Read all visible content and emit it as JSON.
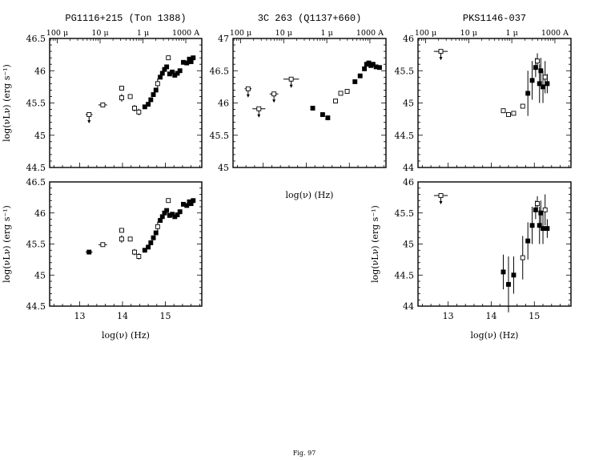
{
  "figure": {
    "caption": "Fig. 97",
    "micron_symbol": "μ"
  },
  "chart_data": [
    {
      "id": "pg-top",
      "type": "scatter",
      "title": "PG1116+215 (Ton 1388)",
      "xlabel": "",
      "ylabel": "log(νLν) (erg s⁻¹)",
      "xlim": [
        12.3,
        15.85
      ],
      "ylim": [
        44.5,
        46.5
      ],
      "yticks": [
        44.5,
        45,
        45.5,
        46,
        46.5
      ],
      "xticks": [],
      "wavelength_ticks": [
        {
          "label": "100 μ",
          "at": 12.477
        },
        {
          "label": "10 μ",
          "at": 13.477
        },
        {
          "label": "1 μ",
          "at": 14.477
        },
        {
          "label": "1000 A",
          "at": 15.477
        }
      ],
      "points": [
        {
          "x": 13.22,
          "y": 45.32,
          "m": "open",
          "arrow": true,
          "xerr": 0.08
        },
        {
          "x": 13.54,
          "y": 45.47,
          "m": "open",
          "xerr": 0.1
        },
        {
          "x": 13.98,
          "y": 45.73,
          "m": "open",
          "xerr": 0.06
        },
        {
          "x": 13.98,
          "y": 45.58,
          "m": "open",
          "yerr": 0.06
        },
        {
          "x": 14.18,
          "y": 45.6,
          "m": "open"
        },
        {
          "x": 14.28,
          "y": 45.42,
          "m": "open",
          "yerr": 0.05
        },
        {
          "x": 14.38,
          "y": 45.36,
          "m": "open",
          "yerr": 0.05
        },
        {
          "x": 14.52,
          "y": 45.44,
          "m": "filled"
        },
        {
          "x": 14.6,
          "y": 45.48,
          "m": "filled"
        },
        {
          "x": 14.66,
          "y": 45.55,
          "m": "filled"
        },
        {
          "x": 14.72,
          "y": 45.63,
          "m": "filled"
        },
        {
          "x": 14.78,
          "y": 45.7,
          "m": "filled"
        },
        {
          "x": 14.82,
          "y": 45.8,
          "m": "open",
          "yerr": 0.08
        },
        {
          "x": 14.88,
          "y": 45.9,
          "m": "filled"
        },
        {
          "x": 14.93,
          "y": 45.96,
          "m": "filled"
        },
        {
          "x": 14.98,
          "y": 46.02,
          "m": "filled"
        },
        {
          "x": 15.03,
          "y": 46.06,
          "m": "filled"
        },
        {
          "x": 15.07,
          "y": 46.2,
          "m": "open"
        },
        {
          "x": 15.1,
          "y": 45.95,
          "m": "filled"
        },
        {
          "x": 15.16,
          "y": 45.98,
          "m": "filled"
        },
        {
          "x": 15.22,
          "y": 45.93,
          "m": "filled"
        },
        {
          "x": 15.28,
          "y": 45.96,
          "m": "filled"
        },
        {
          "x": 15.34,
          "y": 46.0,
          "m": "filled"
        },
        {
          "x": 15.42,
          "y": 46.13,
          "m": "filled"
        },
        {
          "x": 15.5,
          "y": 46.12,
          "m": "filled"
        },
        {
          "x": 15.56,
          "y": 46.18,
          "m": "filled"
        },
        {
          "x": 15.6,
          "y": 46.14,
          "m": "filled"
        },
        {
          "x": 15.65,
          "y": 46.2,
          "m": "filled"
        }
      ]
    },
    {
      "id": "3c-top",
      "type": "scatter",
      "title": "3C 263 (Q1137+660)",
      "xlabel": "log(ν) (Hz)",
      "ylabel": "",
      "xlim": [
        12.3,
        15.85
      ],
      "ylim": [
        45,
        47
      ],
      "yticks": [
        45,
        45.5,
        46,
        46.5,
        47
      ],
      "xticks": [
        13,
        14,
        15
      ],
      "xticklabels": false,
      "wavelength_ticks": [
        {
          "label": "100 μ",
          "at": 12.477
        },
        {
          "label": "10 μ",
          "at": 13.477
        },
        {
          "label": "1 μ",
          "at": 14.477
        },
        {
          "label": "1000 A",
          "at": 15.477
        }
      ],
      "points": [
        {
          "x": 12.65,
          "y": 46.22,
          "m": "open",
          "arrow": true,
          "xerr": 0.08
        },
        {
          "x": 12.9,
          "y": 45.91,
          "m": "open",
          "arrow": true,
          "xerr": 0.15
        },
        {
          "x": 13.25,
          "y": 46.14,
          "m": "open",
          "arrow": true,
          "xerr": 0.1
        },
        {
          "x": 13.65,
          "y": 46.37,
          "m": "open",
          "arrow": true,
          "xerr": 0.18
        },
        {
          "x": 14.15,
          "y": 45.92,
          "m": "filled"
        },
        {
          "x": 14.38,
          "y": 45.82,
          "m": "filled"
        },
        {
          "x": 14.5,
          "y": 45.77,
          "m": "filled"
        },
        {
          "x": 14.68,
          "y": 46.03,
          "m": "open"
        },
        {
          "x": 14.8,
          "y": 46.15,
          "m": "open"
        },
        {
          "x": 14.95,
          "y": 46.18,
          "m": "open"
        },
        {
          "x": 15.13,
          "y": 46.33,
          "m": "filled"
        },
        {
          "x": 15.25,
          "y": 46.42,
          "m": "filled"
        },
        {
          "x": 15.35,
          "y": 46.53,
          "m": "filled"
        },
        {
          "x": 15.4,
          "y": 46.6,
          "m": "filled"
        },
        {
          "x": 15.45,
          "y": 46.62,
          "m": "filled"
        },
        {
          "x": 15.5,
          "y": 46.58,
          "m": "filled"
        },
        {
          "x": 15.55,
          "y": 46.6,
          "m": "filled"
        },
        {
          "x": 15.62,
          "y": 46.56,
          "m": "filled"
        },
        {
          "x": 15.7,
          "y": 46.55,
          "m": "filled"
        }
      ]
    },
    {
      "id": "pks-top",
      "type": "scatter",
      "title": "PKS1146-037",
      "xlabel": "",
      "ylabel": "",
      "xlim": [
        12.3,
        15.85
      ],
      "ylim": [
        44,
        46
      ],
      "yticks": [
        44,
        44.5,
        45,
        45.5,
        46
      ],
      "xticks": [],
      "wavelength_ticks": [
        {
          "label": "100 μ",
          "at": 12.477
        },
        {
          "label": "10 μ",
          "at": 13.477
        },
        {
          "label": "1 μ",
          "at": 14.477
        },
        {
          "label": "1000 A",
          "at": 15.477
        }
      ],
      "points": [
        {
          "x": 12.83,
          "y": 45.8,
          "m": "open",
          "arrow": true,
          "xerr": 0.16
        },
        {
          "x": 14.28,
          "y": 44.88,
          "m": "open"
        },
        {
          "x": 14.4,
          "y": 44.82,
          "m": "open",
          "xerr": 0.05
        },
        {
          "x": 14.52,
          "y": 44.84,
          "m": "open",
          "xerr": 0.05
        },
        {
          "x": 14.73,
          "y": 44.95,
          "m": "open"
        },
        {
          "x": 14.85,
          "y": 45.15,
          "m": "filled",
          "yerr": 0.35
        },
        {
          "x": 14.95,
          "y": 45.35,
          "m": "filled",
          "yerr": 0.3
        },
        {
          "x": 15.03,
          "y": 45.55,
          "m": "filled",
          "yerr": 0.15
        },
        {
          "x": 15.07,
          "y": 45.65,
          "m": "open",
          "yerr": 0.12
        },
        {
          "x": 15.12,
          "y": 45.3,
          "m": "filled",
          "yerr": 0.3
        },
        {
          "x": 15.15,
          "y": 45.5,
          "m": "filled",
          "yerr": 0.2
        },
        {
          "x": 15.2,
          "y": 45.25,
          "m": "filled",
          "yerr": 0.25
        },
        {
          "x": 15.25,
          "y": 45.4,
          "m": "open",
          "yerr": 0.25
        },
        {
          "x": 15.3,
          "y": 45.3,
          "m": "filled",
          "yerr": 0.15
        }
      ]
    },
    {
      "id": "pg-bottom",
      "type": "scatter",
      "title": "",
      "xlabel": "log(ν) (Hz)",
      "ylabel": "log(νLν) (erg s⁻¹)",
      "xlim": [
        12.3,
        15.85
      ],
      "ylim": [
        44.5,
        46.5
      ],
      "yticks": [
        44.5,
        45,
        45.5,
        46,
        46.5
      ],
      "xticks": [
        13,
        14,
        15
      ],
      "wavelength_ticks": [],
      "points": [
        {
          "x": 13.22,
          "y": 45.37,
          "m": "filled",
          "xerr": 0.08
        },
        {
          "x": 13.54,
          "y": 45.49,
          "m": "open",
          "xerr": 0.1
        },
        {
          "x": 13.98,
          "y": 45.72,
          "m": "open",
          "xerr": 0.06
        },
        {
          "x": 13.98,
          "y": 45.58,
          "m": "open",
          "yerr": 0.06
        },
        {
          "x": 14.18,
          "y": 45.58,
          "m": "open"
        },
        {
          "x": 14.28,
          "y": 45.37,
          "m": "open",
          "yerr": 0.05
        },
        {
          "x": 14.38,
          "y": 45.3,
          "m": "open",
          "yerr": 0.05
        },
        {
          "x": 14.52,
          "y": 45.4,
          "m": "filled"
        },
        {
          "x": 14.6,
          "y": 45.45,
          "m": "filled"
        },
        {
          "x": 14.66,
          "y": 45.52,
          "m": "filled"
        },
        {
          "x": 14.72,
          "y": 45.6,
          "m": "filled"
        },
        {
          "x": 14.78,
          "y": 45.68,
          "m": "filled"
        },
        {
          "x": 14.82,
          "y": 45.78,
          "m": "open",
          "yerr": 0.08
        },
        {
          "x": 14.88,
          "y": 45.88,
          "m": "filled"
        },
        {
          "x": 14.93,
          "y": 45.94,
          "m": "filled"
        },
        {
          "x": 14.98,
          "y": 46.0,
          "m": "filled"
        },
        {
          "x": 15.03,
          "y": 46.04,
          "m": "filled"
        },
        {
          "x": 15.07,
          "y": 46.2,
          "m": "open"
        },
        {
          "x": 15.1,
          "y": 45.96,
          "m": "filled"
        },
        {
          "x": 15.16,
          "y": 45.98,
          "m": "filled"
        },
        {
          "x": 15.22,
          "y": 45.94,
          "m": "filled"
        },
        {
          "x": 15.28,
          "y": 45.97,
          "m": "filled"
        },
        {
          "x": 15.34,
          "y": 46.02,
          "m": "filled"
        },
        {
          "x": 15.42,
          "y": 46.14,
          "m": "filled"
        },
        {
          "x": 15.5,
          "y": 46.12,
          "m": "filled"
        },
        {
          "x": 15.56,
          "y": 46.18,
          "m": "filled"
        },
        {
          "x": 15.6,
          "y": 46.15,
          "m": "filled"
        },
        {
          "x": 15.65,
          "y": 46.2,
          "m": "filled"
        }
      ]
    },
    {
      "id": "pks-bottom",
      "type": "scatter",
      "title": "",
      "xlabel": "log(ν) (Hz)",
      "ylabel": "log(νLν) (erg s⁻¹)",
      "xlim": [
        12.3,
        15.85
      ],
      "ylim": [
        44,
        46
      ],
      "yticks": [
        44,
        44.5,
        45,
        45.5,
        46
      ],
      "xticks": [
        13,
        14,
        15
      ],
      "wavelength_ticks": [],
      "points": [
        {
          "x": 12.83,
          "y": 45.78,
          "m": "open",
          "arrow": true,
          "xerr": 0.16
        },
        {
          "x": 14.28,
          "y": 44.55,
          "m": "filled",
          "yerr": 0.28
        },
        {
          "x": 14.4,
          "y": 44.35,
          "m": "filled",
          "yerr": 0.45
        },
        {
          "x": 14.52,
          "y": 44.5,
          "m": "filled",
          "yerr": 0.3
        },
        {
          "x": 14.73,
          "y": 44.78,
          "m": "open",
          "yerr": 0.35
        },
        {
          "x": 14.85,
          "y": 45.05,
          "m": "filled",
          "yerr": 0.3
        },
        {
          "x": 14.95,
          "y": 45.3,
          "m": "filled",
          "yerr": 0.3
        },
        {
          "x": 15.03,
          "y": 45.55,
          "m": "filled",
          "yerr": 0.15
        },
        {
          "x": 15.07,
          "y": 45.65,
          "m": "open",
          "yerr": 0.12
        },
        {
          "x": 15.12,
          "y": 45.3,
          "m": "filled",
          "yerr": 0.3
        },
        {
          "x": 15.15,
          "y": 45.5,
          "m": "filled",
          "yerr": 0.2
        },
        {
          "x": 15.2,
          "y": 45.25,
          "m": "filled",
          "yerr": 0.25
        },
        {
          "x": 15.25,
          "y": 45.55,
          "m": "open",
          "yerr": 0.25
        },
        {
          "x": 15.3,
          "y": 45.25,
          "m": "filled",
          "yerr": 0.15
        }
      ]
    }
  ]
}
